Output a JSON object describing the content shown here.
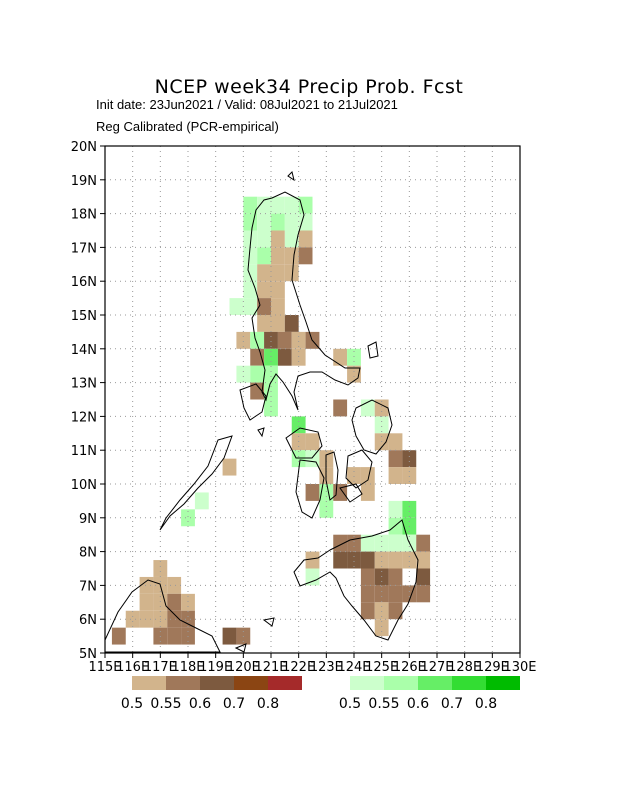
{
  "title": "NCEP week34 Precip Prob. Fcst",
  "subtitle1": "Init date: 23Jun2021 / Valid: 08Jul2021 to 21Jul2021",
  "subtitle2": "Reg Calibrated (PCR-empirical)",
  "map": {
    "lon_range": [
      115,
      130
    ],
    "lat_range": [
      5,
      20
    ],
    "lat_labels": [
      "5N",
      "6N",
      "7N",
      "8N",
      "9N",
      "10N",
      "11N",
      "12N",
      "13N",
      "14N",
      "15N",
      "16N",
      "17N",
      "18N",
      "19N",
      "20N"
    ],
    "lon_labels": [
      "115E",
      "116E",
      "117E",
      "118E",
      "119E",
      "120E",
      "121E",
      "122E",
      "123E",
      "124E",
      "125E",
      "126E",
      "127E",
      "128E",
      "129E",
      "130E"
    ],
    "grid": "dotted"
  },
  "legend_dry": {
    "labels": [
      "0.5",
      "0.55",
      "0.6",
      "0.7",
      "0.8"
    ],
    "colors": [
      "#d2b48c",
      "#a0785a",
      "#7d5a3f",
      "#8b4513",
      "#a52a2a"
    ]
  },
  "legend_wet": {
    "labels": [
      "0.5",
      "0.55",
      "0.6",
      "0.7",
      "0.8"
    ],
    "colors": [
      "#ccffcc",
      "#aaffaa",
      "#66ee66",
      "#33dd33",
      "#00bb00"
    ]
  }
}
